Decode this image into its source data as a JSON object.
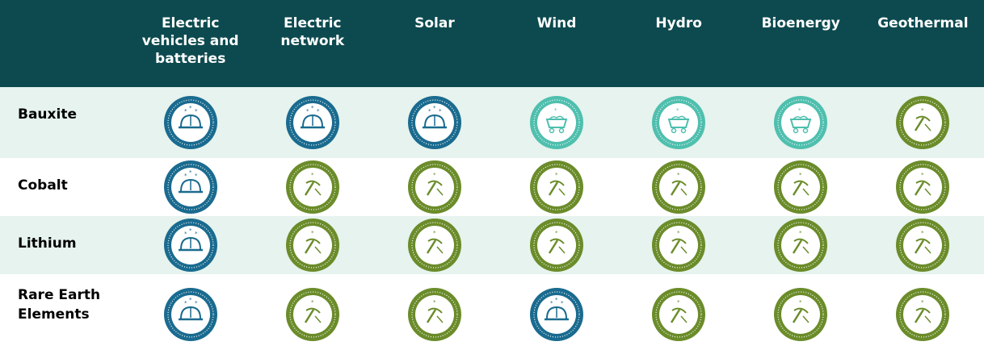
{
  "table": {
    "header": [
      "Electric vehicles and batteries",
      "Electric network",
      "Solar",
      "Wind",
      "Hydro",
      "Bioenergy",
      "Geothermal"
    ],
    "rows": [
      {
        "label": "Bauxite"
      },
      {
        "label": "Cobalt"
      },
      {
        "label": "Lithium"
      },
      {
        "label": "Rare Earth Elements"
      }
    ]
  }
}
